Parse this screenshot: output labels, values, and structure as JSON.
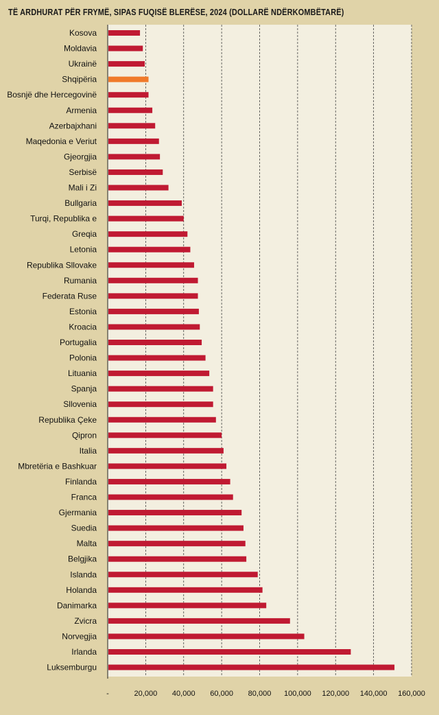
{
  "chart_data": {
    "type": "bar",
    "orientation": "horizontal",
    "title": "TË ARDHURAT PËR FRYMË, SIPAS FUQISË BLERËSE, 2024 (DOLLARË NDËRKOMBËTARË)",
    "categories": [
      "Kosova",
      "Moldavia",
      "Ukrainë",
      "Shqipëria",
      "Bosnjë dhe Hercegovinë",
      "Armenia",
      "Azerbajxhani",
      "Maqedonia e Veriut",
      "Gjeorgjia",
      "Serbisë",
      "Mali i Zi",
      "Bullgaria",
      "Turqi, Republika e",
      "Greqia",
      "Letonia",
      "Republika Sllovake",
      "Rumania",
      "Federata Ruse",
      "Estonia",
      "Kroacia",
      "Portugalia",
      "Polonia",
      "Lituania",
      "Spanja",
      "Sllovenia",
      "Republika Çeke",
      "Qipron",
      "Italia",
      "Mbretëria e Bashkuar",
      "Finlanda",
      "Franca",
      "Gjermania",
      "Suedia",
      "Malta",
      "Belgjika",
      "Islanda",
      "Holanda",
      "Danimarka",
      "Zvicra",
      "Norvegjia",
      "Irlanda",
      "Luksemburgu"
    ],
    "values": [
      17000,
      18500,
      19500,
      21500,
      21500,
      23500,
      25000,
      27000,
      27500,
      29000,
      32000,
      39000,
      40000,
      42000,
      43500,
      45500,
      47500,
      47500,
      48000,
      48500,
      49500,
      51500,
      53500,
      55500,
      55500,
      57000,
      60000,
      61000,
      62500,
      64500,
      66000,
      70500,
      71500,
      72500,
      73000,
      79000,
      81500,
      83500,
      96000,
      103500,
      128000,
      151000
    ],
    "highlight_category": "Shqipëria",
    "colors": {
      "bar": "#c01a32",
      "highlight": "#f07a2a",
      "plot_background": "#f3efe0",
      "page_background": "#e0d3a8",
      "grid": "#444444"
    },
    "xlim": [
      0,
      160000
    ],
    "xticks": [
      0,
      20000,
      40000,
      60000,
      80000,
      100000,
      120000,
      140000,
      160000
    ],
    "xtick_labels": [
      "-",
      "20,000",
      "40,000",
      "60,000",
      "80,000",
      "100,000",
      "120,000",
      "140,000",
      "160,000"
    ],
    "grid": true,
    "grid_style": "dashed vertical",
    "xlabel": "",
    "ylabel": ""
  }
}
